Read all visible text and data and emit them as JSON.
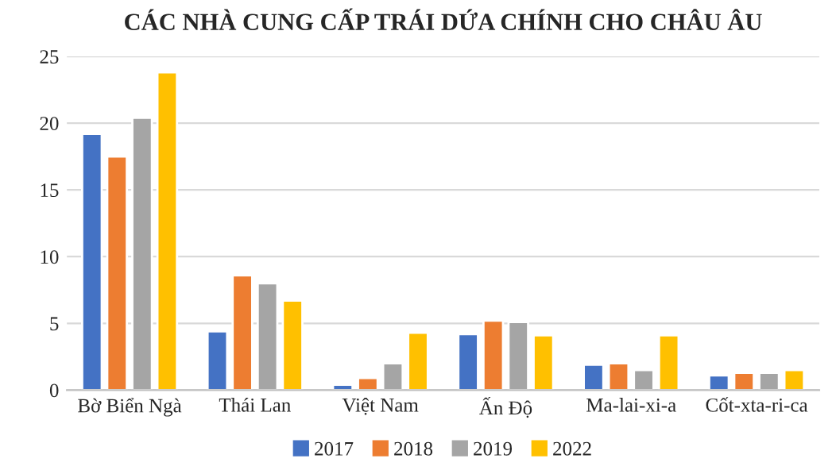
{
  "chart_data": {
    "type": "bar",
    "title": "CÁC NHÀ CUNG CẤP TRÁI DỨA CHÍNH CHO CHÂU ÂU",
    "categories": [
      "Bờ Biển Ngà",
      "Thái Lan",
      "Việt Nam",
      "Ấn Độ",
      "Ma-lai-xi-a",
      "Cốt-xta-ri-ca"
    ],
    "series": [
      {
        "name": "2017",
        "color": "#4472c4",
        "values": [
          19.2,
          4.4,
          0.4,
          4.2,
          1.9,
          1.1
        ]
      },
      {
        "name": "2018",
        "color": "#ed7d31",
        "values": [
          17.5,
          8.6,
          0.9,
          5.2,
          2.0,
          1.3
        ]
      },
      {
        "name": "2019",
        "color": "#a5a5a5",
        "values": [
          20.4,
          8.0,
          2.0,
          5.1,
          1.5,
          1.3
        ]
      },
      {
        "name": "2022",
        "color": "#ffc000",
        "values": [
          23.8,
          6.7,
          4.3,
          4.1,
          4.1,
          1.5
        ]
      }
    ],
    "ylim": [
      0,
      25
    ],
    "yticks": [
      0,
      5,
      10,
      15,
      20,
      25
    ],
    "grid": "y",
    "legend": "bottom"
  }
}
